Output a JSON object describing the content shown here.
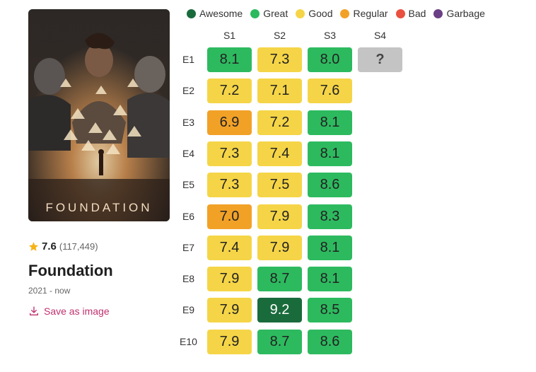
{
  "show": {
    "poster_title": "FOUNDATION",
    "rating": "7.6",
    "votes": "(117,449)",
    "title": "Foundation",
    "years": "2021 - now",
    "save_label": "Save as image"
  },
  "legend": [
    {
      "label": "Awesome",
      "color": "#1a6b3c"
    },
    {
      "label": "Great",
      "color": "#2dba5f"
    },
    {
      "label": "Good",
      "color": "#f5d547"
    },
    {
      "label": "Regular",
      "color": "#f2a127"
    },
    {
      "label": "Bad",
      "color": "#e9503f"
    },
    {
      "label": "Garbage",
      "color": "#6b3f86"
    }
  ],
  "seasons": [
    "S1",
    "S2",
    "S3",
    "S4"
  ],
  "episodes": [
    "E1",
    "E2",
    "E3",
    "E4",
    "E5",
    "E6",
    "E7",
    "E8",
    "E9",
    "E10"
  ],
  "ratings": [
    [
      "8.1",
      "7.3",
      "8.0",
      "?"
    ],
    [
      "7.2",
      "7.1",
      "7.6",
      null
    ],
    [
      "6.9",
      "7.2",
      "8.1",
      null
    ],
    [
      "7.3",
      "7.4",
      "8.1",
      null
    ],
    [
      "7.3",
      "7.5",
      "8.6",
      null
    ],
    [
      "7.0",
      "7.9",
      "8.3",
      null
    ],
    [
      "7.4",
      "7.9",
      "8.1",
      null
    ],
    [
      "7.9",
      "8.7",
      "8.1",
      null
    ],
    [
      "7.9",
      "9.2",
      "8.5",
      null
    ],
    [
      "7.9",
      "8.7",
      "8.6",
      null
    ]
  ],
  "tiers": [
    [
      "great",
      "good",
      "great",
      "unknown"
    ],
    [
      "good",
      "good",
      "good",
      null
    ],
    [
      "regular",
      "good",
      "great",
      null
    ],
    [
      "good",
      "good",
      "great",
      null
    ],
    [
      "good",
      "good",
      "great",
      null
    ],
    [
      "regular",
      "good",
      "great",
      null
    ],
    [
      "good",
      "good",
      "great",
      null
    ],
    [
      "good",
      "great",
      "great",
      null
    ],
    [
      "good",
      "awesome",
      "great",
      null
    ],
    [
      "good",
      "great",
      "great",
      null
    ]
  ],
  "tier_colors": {
    "awesome": "#1a6b3c",
    "great": "#2dba5f",
    "good": "#f5d547",
    "regular": "#f2a127",
    "bad": "#e9503f",
    "garbage": "#6b3f86",
    "unknown": "#c4c4c4"
  }
}
